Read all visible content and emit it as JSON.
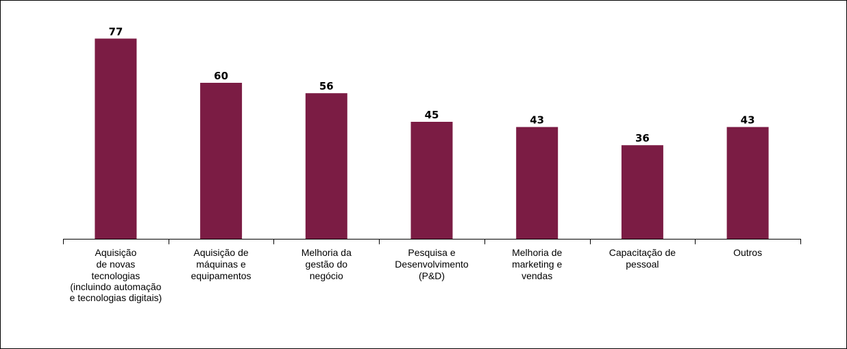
{
  "chart_data": {
    "type": "bar",
    "categories": [
      [
        "Aquisição",
        "de novas",
        "tecnologias",
        "(incluindo automação",
        "e tecnologias digitais)"
      ],
      [
        "Aquisição de",
        "máquinas e",
        "equipamentos"
      ],
      [
        "Melhoria da",
        "gestão do",
        "negócio"
      ],
      [
        "Pesquisa e",
        "Desenvolvimento",
        "(P&D)"
      ],
      [
        "Melhoria de",
        "marketing e",
        "vendas"
      ],
      [
        "Capacitação de",
        "pessoal"
      ],
      [
        "Outros"
      ]
    ],
    "values": [
      77,
      60,
      56,
      45,
      43,
      36,
      43
    ],
    "ylim": [
      0,
      80
    ],
    "grid": false,
    "colors": {
      "bar": "#7b1c44",
      "axis": "#000000",
      "text": "#000000"
    }
  }
}
